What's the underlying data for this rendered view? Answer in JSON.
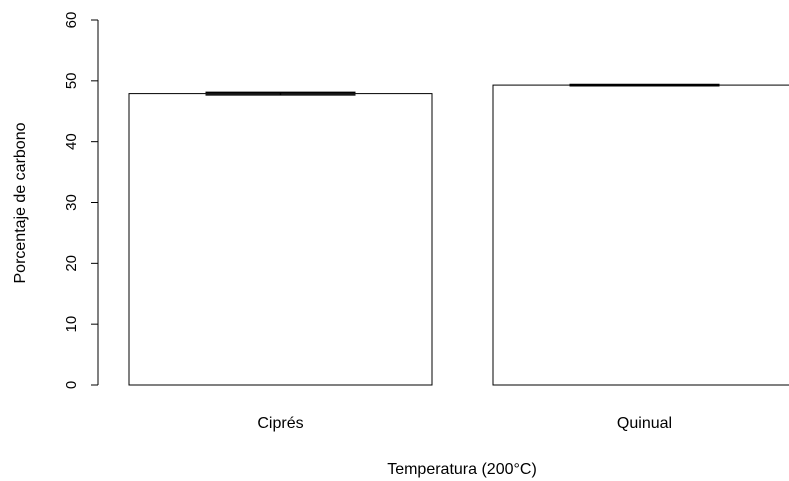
{
  "chart_data": {
    "type": "bar",
    "categories": [
      "Ciprés",
      "Quinual"
    ],
    "values": [
      47.9,
      49.3
    ],
    "error_bars": [
      {
        "low": 47.7,
        "high": 48.1
      },
      {
        "low": 49.2,
        "high": 49.4
      }
    ],
    "title": "",
    "xlabel": "Temperatura (200°C)",
    "ylabel": "Porcentaje de carbono",
    "ylim": [
      0,
      60
    ],
    "yticks": [
      "0",
      "10",
      "20",
      "30",
      "40",
      "50",
      "60"
    ],
    "grid": false,
    "bar_fill": "#ffffff",
    "bar_stroke": "#000000"
  }
}
